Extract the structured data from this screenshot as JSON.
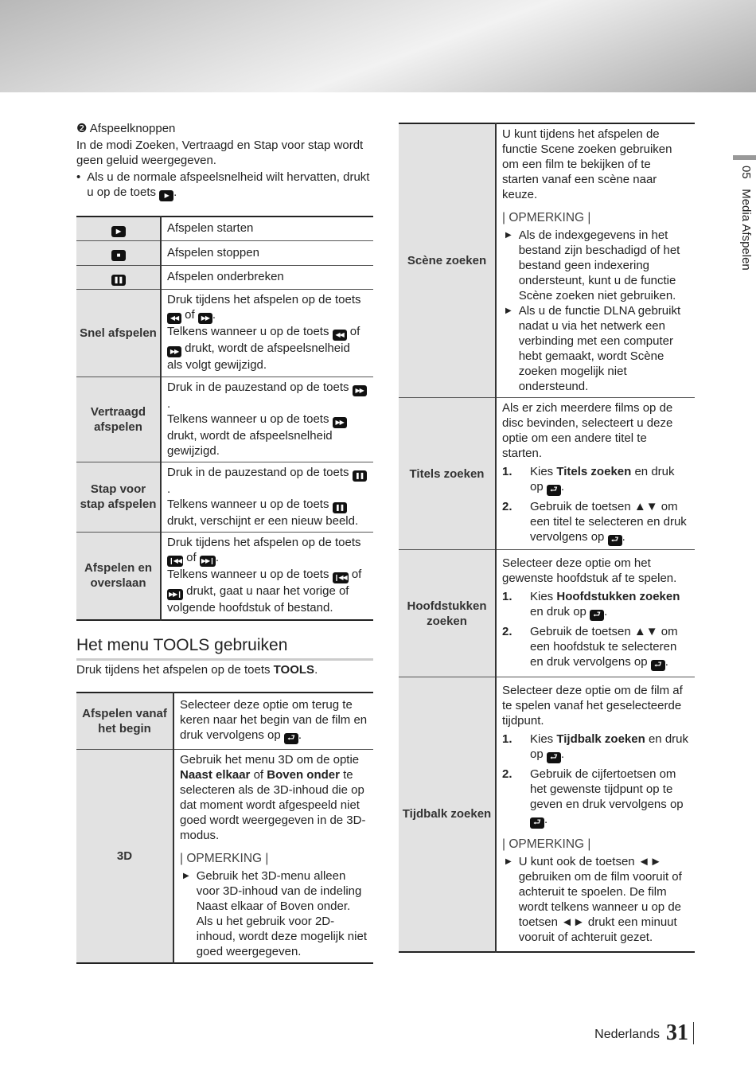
{
  "side_tab": {
    "number": "05",
    "title": "Media Afspelen"
  },
  "footer": {
    "language": "Nederlands",
    "page": "31"
  },
  "playback": {
    "marker": "❷",
    "title": "Afspeelknoppen",
    "intro": "In de modi Zoeken, Vertraagd en Stap voor stap wordt geen geluid weergegeven.",
    "bullet": [
      "Als u de normale afspeelsnelheid wilt hervatten, drukt u op de toets ",
      {
        "i": "play"
      },
      "."
    ],
    "rows": [
      {
        "icon": "play",
        "blocks": [
          {
            "p": [
              "Afspelen starten"
            ]
          }
        ]
      },
      {
        "icon": "stop",
        "blocks": [
          {
            "p": [
              "Afspelen stoppen"
            ]
          }
        ]
      },
      {
        "icon": "pause",
        "blocks": [
          {
            "p": [
              "Afspelen onderbreken"
            ]
          }
        ]
      },
      {
        "label": "Snel afspelen",
        "blocks": [
          {
            "p": [
              "Druk tijdens het afspelen op de toets ",
              {
                "i": "rew"
              },
              " of ",
              {
                "i": "ff"
              },
              "."
            ]
          },
          {
            "p": [
              "Telkens wanneer u op de toets ",
              {
                "i": "rew"
              },
              " of ",
              {
                "i": "ff"
              },
              " drukt, wordt de afspeelsnelheid als volgt gewijzigd."
            ]
          }
        ]
      },
      {
        "label": "Vertraagd afspelen",
        "blocks": [
          {
            "p": [
              "Druk in de pauzestand op de toets ",
              {
                "i": "ff"
              },
              "."
            ]
          },
          {
            "p": [
              "Telkens wanneer u op de toets ",
              {
                "i": "ff"
              },
              " drukt, wordt de afspeelsnelheid gewijzigd."
            ]
          }
        ]
      },
      {
        "label": "Stap voor stap afspelen",
        "blocks": [
          {
            "p": [
              "Druk in de pauzestand op de toets ",
              {
                "i": "pause"
              },
              "."
            ]
          },
          {
            "p": [
              "Telkens wanneer u op de toets ",
              {
                "i": "pause"
              },
              " drukt, verschijnt er een nieuw beeld."
            ]
          }
        ]
      },
      {
        "label": "Afspelen en overslaan",
        "blocks": [
          {
            "p": [
              "Druk tijdens het afspelen op de toets ",
              {
                "i": "prev"
              },
              " of ",
              {
                "i": "next"
              },
              "."
            ]
          },
          {
            "p": [
              "Telkens wanneer u op de toets ",
              {
                "i": "prev"
              },
              " of ",
              {
                "i": "next"
              },
              " drukt, gaat u naar het vorige of volgende hoofdstuk of bestand."
            ]
          }
        ]
      }
    ]
  },
  "tools": {
    "title": "Het menu TOOLS gebruiken",
    "intro": [
      "Druk tijdens het afspelen op de toets ",
      {
        "b": "TOOLS"
      },
      "."
    ],
    "rows": [
      {
        "label": "Afspelen vanaf het begin",
        "blocks": [
          {
            "p": [
              "Selecteer deze optie om terug te keren naar het begin van de film en druk vervolgens op ",
              {
                "i": "enter"
              },
              "."
            ]
          }
        ]
      },
      {
        "label": "3D",
        "blocks": [
          {
            "p": [
              "Gebruik het menu 3D om de optie ",
              {
                "b": "Naast elkaar"
              },
              " of ",
              {
                "b": "Boven onder"
              },
              " te selecteren als de 3D-inhoud die op dat moment wordt afgespeeld niet goed wordt weergegeven in de 3D-modus."
            ]
          },
          {
            "note": "| OPMERKING |"
          },
          {
            "arrow": [
              "Gebruik het 3D-menu alleen voor 3D-inhoud van de indeling Naast elkaar of Boven onder. Als u het gebruik voor 2D-inhoud, wordt deze mogelijk niet goed weergegeven."
            ]
          }
        ]
      }
    ]
  },
  "search": {
    "rows": [
      {
        "label": "Scène zoeken",
        "blocks": [
          {
            "p": [
              "U kunt tijdens het afspelen de functie Scene zoeken gebruiken om een film te bekijken of te starten vanaf een scène naar keuze."
            ]
          },
          {
            "note": "| OPMERKING |"
          },
          {
            "arrow": [
              "Als de indexgegevens in het bestand zijn beschadigd of het bestand geen indexering ondersteunt, kunt u de functie Scène zoeken niet gebruiken."
            ]
          },
          {
            "arrow": [
              "Als u de functie DLNA gebruikt nadat u via het netwerk een verbinding met een computer hebt gemaakt, wordt Scène zoeken mogelijk niet ondersteund."
            ]
          }
        ]
      },
      {
        "label": "Titels zoeken",
        "blocks": [
          {
            "p": [
              "Als er zich meerdere films op de disc bevinden, selecteert u deze optie om een andere titel te starten."
            ]
          },
          {
            "num": "1.",
            "s": [
              "Kies ",
              {
                "b": "Titels zoeken"
              },
              " en druk op ",
              {
                "i": "enter"
              },
              "."
            ]
          },
          {
            "num": "2.",
            "s": [
              "Gebruik de toetsen ▲▼ om een titel te selecteren en druk vervolgens op ",
              {
                "i": "enter"
              },
              "."
            ]
          }
        ]
      },
      {
        "label": "Hoofdstukken zoeken",
        "blocks": [
          {
            "p": [
              "Selecteer deze optie om het gewenste hoofdstuk af te spelen."
            ]
          },
          {
            "num": "1.",
            "s": [
              "Kies ",
              {
                "b": "Hoofdstukken zoeken"
              },
              " en druk op ",
              {
                "i": "enter"
              },
              "."
            ]
          },
          {
            "num": "2.",
            "s": [
              "Gebruik de toetsen ▲▼ om een hoofdstuk te selecteren en druk vervolgens op ",
              {
                "i": "enter"
              },
              "."
            ]
          }
        ]
      },
      {
        "label": "Tijdbalk zoeken",
        "blocks": [
          {
            "p": [
              "Selecteer deze optie om de film af te spelen vanaf het geselecteerde tijdpunt."
            ]
          },
          {
            "num": "1.",
            "s": [
              "Kies ",
              {
                "b": "Tijdbalk zoeken"
              },
              " en druk op ",
              {
                "i": "enter"
              },
              "."
            ]
          },
          {
            "num": "2.",
            "s": [
              "Gebruik de cijfertoetsen om het gewenste tijdpunt op te geven en druk vervolgens op ",
              {
                "i": "enter"
              },
              "."
            ]
          },
          {
            "note": "| OPMERKING |"
          },
          {
            "arrow": [
              "U kunt ook de toetsen ◄► gebruiken om de film vooruit of achteruit te spoelen. De film wordt telkens wanneer u op de toetsen ◄► drukt een minuut vooruit of achteruit gezet."
            ]
          }
        ]
      }
    ]
  }
}
